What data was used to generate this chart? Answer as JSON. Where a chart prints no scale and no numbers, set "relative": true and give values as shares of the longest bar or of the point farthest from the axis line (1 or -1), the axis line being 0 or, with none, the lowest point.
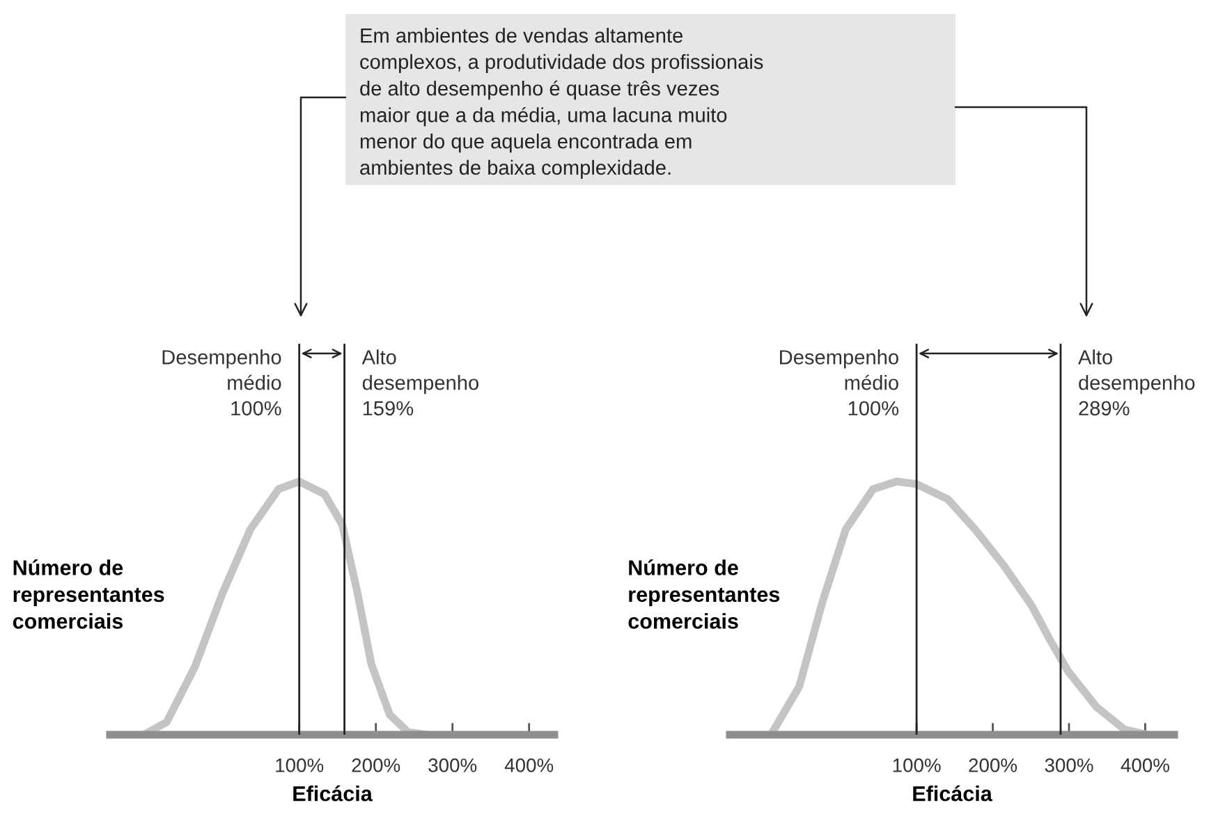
{
  "chart_data": [
    {
      "type": "line",
      "relative": true,
      "xlabel": "Eficácia",
      "ylabel": "Número de\nrepresentantes\ncomerciais",
      "annotations": [
        "Em ambientes de vendas altamente\ncomplexos, a produtividade dos profissionais\nde alto desempenho é quase três vezes\nmaior que a da média, uma lacuna muito\nmenor do que aquela encontrada em\nambientes de baixa complexidade."
      ],
      "x": [
        -103,
        -73,
        -36,
        0,
        36,
        73,
        100,
        133,
        156,
        176,
        194,
        218,
        242,
        267
      ],
      "series": [
        {
          "color": "#c4c4c6",
          "values": [
            0,
            0.05,
            0.27,
            0.56,
            0.81,
            0.97,
            1.0,
            0.95,
            0.83,
            0.56,
            0.28,
            0.08,
            0.01,
            0
          ]
        }
      ],
      "xlim": [
        -147,
        433
      ],
      "xticks": [
        {
          "value": 100,
          "label": "100%"
        },
        {
          "value": 200,
          "label": "200%"
        },
        {
          "value": 300,
          "label": "300%"
        },
        {
          "value": 400,
          "label": "400%"
        }
      ],
      "ref_lines": [
        {
          "axis": "x",
          "value": 100,
          "label": "Desempenho\nmédio\n100%",
          "color": "#222222"
        },
        {
          "axis": "x",
          "value": 159,
          "label": "Alto\ndesempenho\n159%",
          "color": "#222222"
        }
      ],
      "grid": false,
      "legend": false,
      "tick_labels": "x"
    },
    {
      "type": "line",
      "relative": true,
      "xlabel": "Eficácia",
      "ylabel": "Número de\nrepresentantes\ncomerciais",
      "x": [
        -91,
        -54,
        -24,
        7,
        43,
        74,
        100,
        141,
        177,
        214,
        251,
        274,
        299,
        336,
        373,
        403
      ],
      "series": [
        {
          "color": "#c4c4c6",
          "values": [
            0,
            0.19,
            0.52,
            0.81,
            0.97,
            1.0,
            0.99,
            0.93,
            0.81,
            0.67,
            0.51,
            0.38,
            0.25,
            0.11,
            0.02,
            0
          ]
        }
      ],
      "xlim": [
        -145,
        438
      ],
      "xticks": [
        {
          "value": 100,
          "label": "100%"
        },
        {
          "value": 200,
          "label": "200%"
        },
        {
          "value": 300,
          "label": "300%"
        },
        {
          "value": 400,
          "label": "400%"
        }
      ],
      "ref_lines": [
        {
          "axis": "x",
          "value": 100,
          "label": "Desempenho\nmédio\n100%",
          "color": "#222222"
        },
        {
          "axis": "x",
          "value": 289,
          "label": "Alto\ndesempenho\n289%",
          "color": "#222222"
        }
      ],
      "grid": false,
      "legend": false,
      "tick_labels": "x"
    }
  ]
}
